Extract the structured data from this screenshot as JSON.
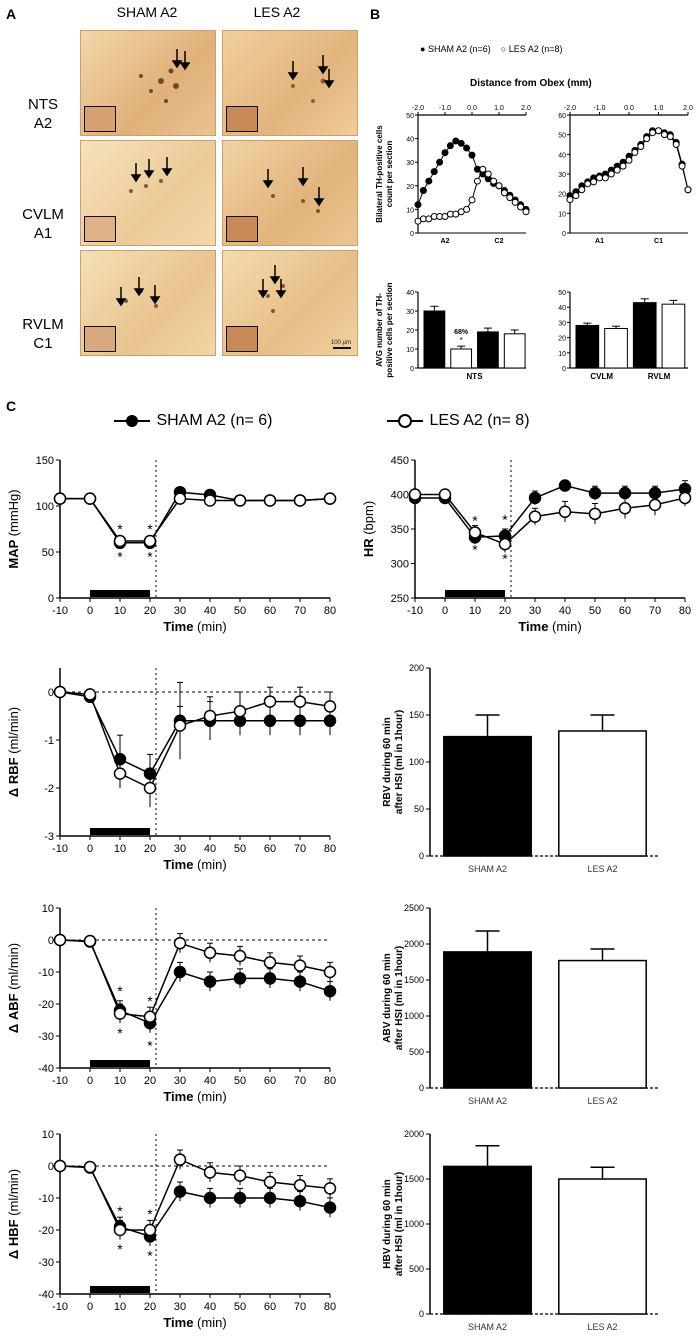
{
  "panel_a": {
    "letter": "A",
    "columns": [
      "SHAM A2",
      "LES A2"
    ],
    "rows": [
      {
        "line1": "NTS",
        "line2": "A2"
      },
      {
        "line1": "CVLM",
        "line2": "A1"
      },
      {
        "line1": "RVLM",
        "line2": "C1"
      }
    ],
    "scale_bar": "100 µm"
  },
  "panel_b": {
    "letter": "B",
    "legend": [
      "SHAM A2 (n=6)",
      "LES A2 (n=8)"
    ],
    "xaxis_title": "Distance from Obex (mm)"
  },
  "panel_c": {
    "letter": "C",
    "legend": [
      "SHAM A2  (n= 6)",
      "LES A2  (n= 8)"
    ]
  },
  "colors": {
    "sham": "#000000",
    "les": "#ffffff",
    "stain": "#e8c08a"
  },
  "chart_data": [
    {
      "id": "b-nts-line",
      "type": "line",
      "ylabel": "Bilateral TH-positive cells count per section",
      "xlabel": "Distance from Obex (mm)",
      "xlim": [
        -2.0,
        2.0
      ],
      "ylim": [
        0,
        50
      ],
      "xticks": [
        "-2.0",
        "-1.0",
        "0.0",
        "1.0",
        "2.0"
      ],
      "yticks": [
        "0",
        "10",
        "20",
        "30",
        "40",
        "50"
      ],
      "region_labels": [
        "A2",
        "C2"
      ],
      "x": [
        -2.0,
        -1.8,
        -1.6,
        -1.4,
        -1.2,
        -1.0,
        -0.8,
        -0.6,
        -0.4,
        -0.2,
        0.0,
        0.2,
        0.4,
        0.6,
        0.8,
        1.0,
        1.2,
        1.4,
        1.6,
        1.8,
        2.0
      ],
      "series": [
        {
          "name": "SHAM A2 (n=6)",
          "values": [
            12,
            18,
            22,
            26,
            30,
            34,
            37,
            39,
            38,
            36,
            33,
            27,
            25,
            23,
            21,
            20,
            18,
            16,
            14,
            12,
            10
          ]
        },
        {
          "name": "LES A2 (n=8)",
          "values": [
            5,
            6,
            6,
            7,
            7,
            7,
            8,
            8,
            9,
            10,
            14,
            22,
            27,
            25,
            22,
            20,
            17,
            15,
            13,
            11,
            9
          ]
        }
      ]
    },
    {
      "id": "b-vlm-line",
      "type": "line",
      "xlim": [
        -2.0,
        2.0
      ],
      "ylim": [
        0,
        60
      ],
      "xticks": [
        "-2.0",
        "-1.0",
        "0.0",
        "1.0",
        "2.0"
      ],
      "yticks": [
        "0",
        "10",
        "20",
        "30",
        "40",
        "50",
        "60"
      ],
      "region_labels": [
        "A1",
        "C1"
      ],
      "x": [
        -2.0,
        -1.8,
        -1.6,
        -1.4,
        -1.2,
        -1.0,
        -0.8,
        -0.6,
        -0.4,
        -0.2,
        0.0,
        0.2,
        0.4,
        0.6,
        0.8,
        1.0,
        1.2,
        1.4,
        1.6,
        1.8,
        2.0
      ],
      "series": [
        {
          "name": "SHAM A2 (n=6)",
          "values": [
            19,
            21,
            24,
            26,
            28,
            29,
            30,
            32,
            34,
            36,
            39,
            42,
            45,
            49,
            52,
            52,
            51,
            50,
            46,
            35,
            22
          ]
        },
        {
          "name": "LES A2 (n=8)",
          "values": [
            17,
            19,
            22,
            25,
            26,
            28,
            28,
            30,
            32,
            34,
            37,
            41,
            44,
            48,
            51,
            52,
            50,
            49,
            45,
            34,
            22
          ]
        }
      ]
    },
    {
      "id": "b-nts-bar",
      "type": "bar",
      "ylabel": "AVG number of TH-positive cells per section",
      "ylim": [
        0,
        40
      ],
      "yticks": [
        "0",
        "10",
        "20",
        "30",
        "40"
      ],
      "bars": [
        {
          "series": "SHAM A2",
          "value": 30,
          "err": 2.5
        },
        {
          "series": "LES A2",
          "value": 10,
          "err": 1.5
        },
        {
          "series": "SHAM A2",
          "value": 19,
          "err": 2
        },
        {
          "series": "LES A2",
          "value": 18,
          "err": 2
        }
      ],
      "annotation": "68%",
      "annotation_star": "*",
      "group_labels": [
        "NTS"
      ]
    },
    {
      "id": "b-vlm-bar",
      "type": "bar",
      "ylim": [
        0,
        50
      ],
      "yticks": [
        "0",
        "10",
        "20",
        "30",
        "40",
        "50"
      ],
      "bars": [
        {
          "series": "SHAM A2",
          "value": 28,
          "err": 1.5
        },
        {
          "series": "LES A2",
          "value": 26,
          "err": 1.5
        },
        {
          "series": "SHAM A2",
          "value": 43,
          "err": 2.5
        },
        {
          "series": "LES A2",
          "value": 42,
          "err": 2.5
        }
      ],
      "group_labels": [
        "CVLM",
        "RVLM"
      ]
    },
    {
      "id": "c-map",
      "type": "line",
      "ylabel": "MAP",
      "yunit": "(mmHg)",
      "xlabel": "Time",
      "xunit": "(min)",
      "xlim": [
        -10,
        80
      ],
      "ylim": [
        0,
        150
      ],
      "xticks": [
        "-10",
        "0",
        "10",
        "20",
        "30",
        "40",
        "50",
        "60",
        "70",
        "80"
      ],
      "yticks": [
        "0",
        "50",
        "100",
        "150"
      ],
      "x": [
        -10,
        0,
        10,
        20,
        30,
        40,
        50,
        60,
        70,
        80
      ],
      "series": [
        {
          "name": "SHAM A2",
          "values": [
            108,
            108,
            60,
            60,
            115,
            112,
            106,
            106,
            106,
            108
          ],
          "err": [
            3,
            3,
            4,
            4,
            4,
            3,
            3,
            3,
            3,
            3
          ]
        },
        {
          "name": "LES A2",
          "values": [
            108,
            108,
            62,
            62,
            108,
            106,
            106,
            106,
            106,
            108
          ],
          "err": [
            3,
            3,
            4,
            4,
            4,
            3,
            3,
            3,
            3,
            3
          ]
        }
      ],
      "stim_bar": [
        0,
        20
      ],
      "vline": 22,
      "stars": [
        {
          "x": 10,
          "y": 45,
          "t": "*"
        },
        {
          "x": 10,
          "y": 75,
          "t": "*"
        },
        {
          "x": 20,
          "y": 45,
          "t": "*"
        },
        {
          "x": 20,
          "y": 75,
          "t": "*"
        }
      ]
    },
    {
      "id": "c-hr",
      "type": "line",
      "ylabel": "HR",
      "yunit": "(bpm)",
      "xlabel": "Time",
      "xunit": "(min)",
      "xlim": [
        -10,
        80
      ],
      "ylim": [
        250,
        450
      ],
      "xticks": [
        "-10",
        "0",
        "10",
        "20",
        "30",
        "40",
        "50",
        "60",
        "70",
        "80"
      ],
      "yticks": [
        "250",
        "300",
        "350",
        "400",
        "450"
      ],
      "x": [
        -10,
        0,
        10,
        20,
        30,
        40,
        50,
        60,
        70,
        80
      ],
      "series": [
        {
          "name": "SHAM A2",
          "values": [
            395,
            395,
            338,
            340,
            395,
            413,
            402,
            402,
            402,
            408
          ],
          "err": [
            6,
            6,
            10,
            10,
            10,
            6,
            10,
            10,
            10,
            12
          ]
        },
        {
          "name": "LES A2",
          "values": [
            400,
            400,
            345,
            328,
            368,
            375,
            372,
            380,
            385,
            395
          ],
          "err": [
            6,
            6,
            10,
            12,
            12,
            15,
            15,
            15,
            15,
            12
          ]
        }
      ],
      "stim_bar": [
        0,
        20
      ],
      "vline": 22,
      "stars": [
        {
          "x": 10,
          "y": 320,
          "t": "*"
        },
        {
          "x": 10,
          "y": 362,
          "t": "*"
        },
        {
          "x": 20,
          "y": 307,
          "t": "*"
        },
        {
          "x": 20,
          "y": 364,
          "t": "*"
        }
      ]
    },
    {
      "id": "c-rbf",
      "type": "line",
      "ylabel": "Δ RBF",
      "yunit": "(ml/min)",
      "xlabel": "Time",
      "xunit": "(min)",
      "xlim": [
        -10,
        80
      ],
      "ylim": [
        -3,
        0.5
      ],
      "xticks": [
        "-10",
        "0",
        "10",
        "20",
        "30",
        "40",
        "50",
        "60",
        "70",
        "80"
      ],
      "yticks": [
        "-3",
        "-2",
        "-1",
        "0"
      ],
      "x": [
        -10,
        0,
        10,
        20,
        30,
        40,
        50,
        60,
        70,
        80
      ],
      "series": [
        {
          "name": "SHAM A2",
          "values": [
            0,
            -0.1,
            -1.4,
            -1.7,
            -0.6,
            -0.6,
            -0.6,
            -0.6,
            -0.6,
            -0.6
          ],
          "err": [
            0.05,
            0.05,
            0.5,
            0.4,
            0.8,
            0.4,
            0.3,
            0.3,
            0.3,
            0.3
          ]
        },
        {
          "name": "LES A2",
          "values": [
            0,
            -0.05,
            -1.7,
            -2.0,
            -0.7,
            -0.5,
            -0.4,
            -0.2,
            -0.2,
            -0.3
          ],
          "err": [
            0.05,
            0.05,
            0.3,
            0.4,
            0.4,
            0.4,
            0.4,
            0.3,
            0.3,
            0.3
          ]
        }
      ],
      "stim_bar": [
        0,
        20
      ],
      "vline": 22,
      "zero_line": true,
      "stars": []
    },
    {
      "id": "c-rbv",
      "type": "bar",
      "ylabel": "RBV during 60 min after HSI (ml in 1hour)",
      "ylim": [
        0,
        200
      ],
      "yticks": [
        "0",
        "50",
        "100",
        "150",
        "200"
      ],
      "categories": [
        "SHAM A2",
        "LES A2"
      ],
      "values": [
        127,
        133
      ],
      "err": [
        23,
        17
      ]
    },
    {
      "id": "c-abf",
      "type": "line",
      "ylabel": "Δ ABF",
      "yunit": "(ml/min)",
      "xlabel": "Time",
      "xunit": "(min)",
      "xlim": [
        -10,
        80
      ],
      "ylim": [
        -40,
        10
      ],
      "xticks": [
        "-10",
        "0",
        "10",
        "20",
        "30",
        "40",
        "50",
        "60",
        "70",
        "80"
      ],
      "yticks": [
        "-40",
        "-30",
        "-20",
        "-10",
        "0",
        "10"
      ],
      "x": [
        -10,
        0,
        10,
        20,
        30,
        40,
        50,
        60,
        70,
        80
      ],
      "series": [
        {
          "name": "SHAM A2",
          "values": [
            0,
            -0.5,
            -22,
            -26,
            -10,
            -13,
            -12,
            -12,
            -13,
            -16
          ],
          "err": [
            0.5,
            0.5,
            3,
            3,
            3,
            3,
            3,
            3,
            3,
            3
          ]
        },
        {
          "name": "LES A2",
          "values": [
            0,
            -0.3,
            -23,
            -24,
            -1,
            -4,
            -5,
            -7,
            -8,
            -10
          ],
          "err": [
            0.5,
            0.5,
            3,
            3,
            3,
            3,
            3,
            3,
            3,
            3
          ]
        }
      ],
      "stim_bar": [
        0,
        20
      ],
      "vline": 22,
      "zero_line": true,
      "stars": [
        {
          "x": 10,
          "y": -16,
          "t": "*"
        },
        {
          "x": 10,
          "y": -29,
          "t": "*"
        },
        {
          "x": 20,
          "y": -19,
          "t": "*"
        },
        {
          "x": 20,
          "y": -33,
          "t": "*"
        }
      ]
    },
    {
      "id": "c-abv",
      "type": "bar",
      "ylabel": "ABV during 60 min after HSI (ml in 1hour)",
      "ylim": [
        0,
        2500
      ],
      "yticks": [
        "0",
        "500",
        "1000",
        "1500",
        "2000",
        "2500"
      ],
      "categories": [
        "SHAM A2",
        "LES A2"
      ],
      "values": [
        1890,
        1770
      ],
      "err": [
        290,
        160
      ]
    },
    {
      "id": "c-hbf",
      "type": "line",
      "ylabel": "Δ HBF",
      "yunit": "(ml/min)",
      "xlabel": "Time",
      "xunit": "(min)",
      "xlim": [
        -10,
        80
      ],
      "ylim": [
        -40,
        10
      ],
      "xticks": [
        "-10",
        "0",
        "10",
        "20",
        "30",
        "40",
        "50",
        "60",
        "70",
        "80"
      ],
      "yticks": [
        "-40",
        "-30",
        "-20",
        "-10",
        "0",
        "10"
      ],
      "x": [
        -10,
        0,
        10,
        20,
        30,
        40,
        50,
        60,
        70,
        80
      ],
      "series": [
        {
          "name": "SHAM A2",
          "values": [
            0,
            -0.5,
            -19,
            -22,
            -8,
            -10,
            -10,
            -10,
            -11,
            -13
          ],
          "err": [
            0.5,
            0.5,
            3,
            3,
            3,
            3,
            3,
            3,
            3,
            3
          ]
        },
        {
          "name": "LES A2",
          "values": [
            0,
            -0.3,
            -20,
            -20,
            2,
            -2,
            -3,
            -5,
            -6,
            -7
          ],
          "err": [
            0.5,
            0.5,
            3,
            3,
            3,
            3,
            3,
            3,
            3,
            3
          ]
        }
      ],
      "stim_bar": [
        0,
        20
      ],
      "vline": 22,
      "zero_line": true,
      "stars": [
        {
          "x": 10,
          "y": -14,
          "t": "*"
        },
        {
          "x": 10,
          "y": -26,
          "t": "*"
        },
        {
          "x": 20,
          "y": -15,
          "t": "*"
        },
        {
          "x": 20,
          "y": -28,
          "t": "*"
        }
      ]
    },
    {
      "id": "c-hbv",
      "type": "bar",
      "ylabel": "HBV during 60 min after HSI (ml in 1hour)",
      "ylim": [
        0,
        2000
      ],
      "yticks": [
        "0",
        "500",
        "1000",
        "1500",
        "2000"
      ],
      "categories": [
        "SHAM A2",
        "LES A2"
      ],
      "values": [
        1640,
        1500
      ],
      "err": [
        230,
        130
      ]
    }
  ]
}
